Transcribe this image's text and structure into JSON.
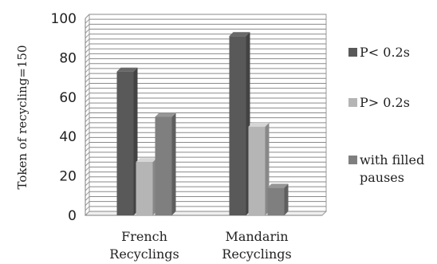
{
  "chart_data": {
    "type": "bar",
    "title": "",
    "xlabel": "",
    "ylabel": "Token of recycling=150",
    "categories": [
      "French Recyclings",
      "Mandarin Recyclings"
    ],
    "category_lines": [
      [
        "French",
        "Recyclings"
      ],
      [
        "Mandarin",
        "Recyclings"
      ]
    ],
    "series": [
      {
        "name": "P< 0.2s",
        "values": [
          73,
          91
        ],
        "color": "#595959"
      },
      {
        "name": "P> 0.2s",
        "values": [
          27,
          45
        ],
        "color": "#b5b5b5"
      },
      {
        "name": "with filled pauses",
        "name_lines": [
          "with filled",
          "pauses"
        ],
        "values": [
          50,
          14
        ],
        "color": "#7f7f7f"
      }
    ],
    "ylim": [
      0,
      100
    ],
    "yticks": [
      0,
      20,
      40,
      60,
      80,
      100
    ],
    "grid": true,
    "legend_position": "right",
    "style": "3d-bars"
  }
}
